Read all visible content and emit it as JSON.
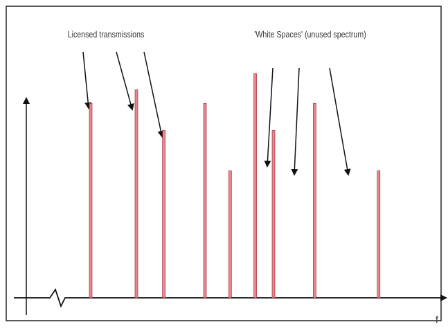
{
  "labels": {
    "licensed": "Licensed transmissions",
    "white_spaces": "'White Spaces' (unused spectrum)",
    "frequency_axis": "f"
  },
  "colors": {
    "signal_fill": "#e9868c",
    "signal_stroke": "#8a1f2a",
    "line": "#111111",
    "frame": "#222222"
  },
  "chart_data": {
    "type": "bar",
    "xlabel": "f",
    "ylabel": "",
    "signals": [
      {
        "f": 1.0,
        "level": 0.72
      },
      {
        "f": 2.0,
        "level": 0.77
      },
      {
        "f": 2.6,
        "level": 0.62
      },
      {
        "f": 3.5,
        "level": 0.72
      },
      {
        "f": 4.05,
        "level": 0.47
      },
      {
        "f": 4.6,
        "level": 0.83
      },
      {
        "f": 5.0,
        "level": 0.62
      },
      {
        "f": 5.9,
        "level": 0.72
      },
      {
        "f": 7.3,
        "level": 0.47
      }
    ]
  }
}
